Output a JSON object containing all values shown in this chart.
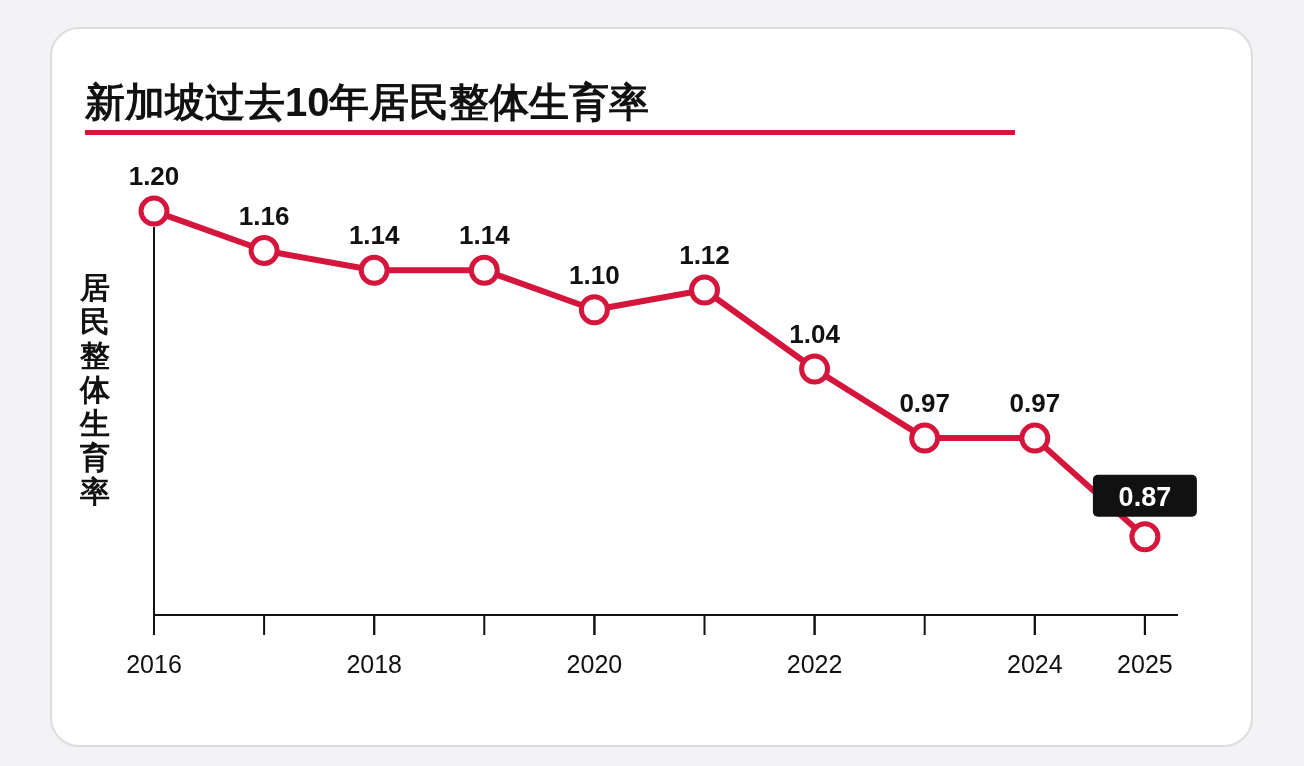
{
  "chart_data": {
    "type": "line",
    "title": "新加坡过去10年居民整体生育率",
    "ylabel": "居民整体生育率",
    "x": [
      2016,
      2017,
      2018,
      2019,
      2020,
      2021,
      2022,
      2023,
      2024,
      2025
    ],
    "series": [
      {
        "color": "#d4153c",
        "values": [
          1.2,
          1.16,
          1.14,
          1.14,
          1.1,
          1.12,
          1.04,
          0.97,
          0.97,
          0.87
        ],
        "value_labels": [
          "1.20",
          "1.16",
          "1.14",
          "1.14",
          "1.10",
          "1.12",
          "1.04",
          "0.97",
          "0.97",
          "0.87"
        ]
      }
    ],
    "marker": "circle",
    "line_style": "solid",
    "tick_labels": "x",
    "xlim": [
      2016,
      2025.3
    ],
    "xticks": [
      2016,
      2018,
      2020,
      2022,
      2024,
      2025
    ]
  }
}
